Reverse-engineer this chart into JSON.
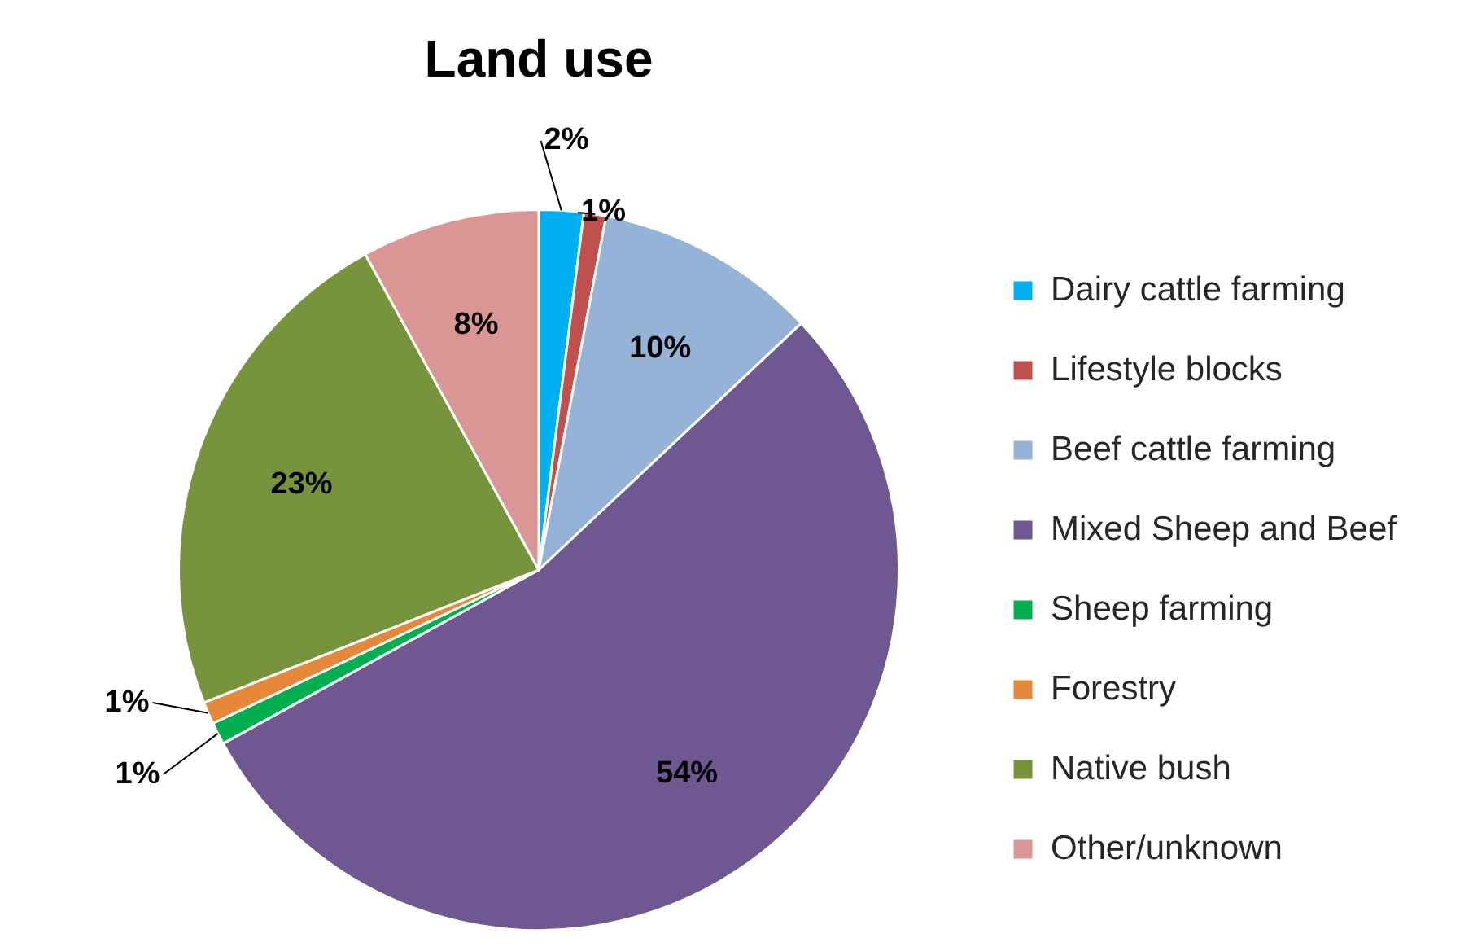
{
  "chart_data": {
    "type": "pie",
    "title": "Land use",
    "categories": [
      "Dairy cattle farming",
      "Lifestyle blocks",
      "Beef cattle farming",
      "Mixed Sheep and Beef",
      "Sheep farming",
      "Forestry",
      "Native bush",
      "Other/unknown"
    ],
    "values": [
      2,
      1,
      10,
      54,
      1,
      1,
      23,
      8
    ],
    "colors": [
      "#00b0f0",
      "#c0504d",
      "#95b3d7",
      "#6f5791",
      "#00b050",
      "#e6873a",
      "#77933c",
      "#d99694"
    ],
    "value_labels": [
      "2%",
      "1%",
      "10%",
      "54%",
      "1%",
      "1%",
      "23%",
      "8%"
    ],
    "legend": "right"
  }
}
